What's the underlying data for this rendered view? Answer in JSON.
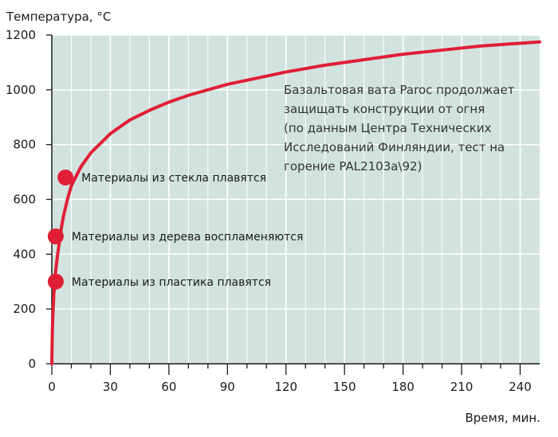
{
  "chart_data": {
    "type": "line",
    "ylabel": "Температура, °C",
    "xlabel": "Время, мин.",
    "xlim": [
      0,
      250
    ],
    "ylim": [
      0,
      1200
    ],
    "x_tick_labels": [
      "0",
      "30",
      "60",
      "90",
      "120",
      "150",
      "180",
      "210",
      "240"
    ],
    "x_tick_values": [
      0,
      30,
      60,
      90,
      120,
      150,
      180,
      210,
      240
    ],
    "y_ticks": [
      0,
      200,
      400,
      600,
      800,
      1000,
      1200
    ],
    "grid": true,
    "background_color": "#d2e3df",
    "grid_color": "#ffffff",
    "line_color": "#e01f36",
    "series": [
      {
        "x": [
          0,
          0.3,
          0.5,
          1,
          1.5,
          2,
          3,
          4,
          5,
          6,
          8,
          10,
          15,
          20,
          30,
          40,
          50,
          60,
          70,
          80,
          90,
          100,
          120,
          140,
          160,
          180,
          200,
          220,
          240,
          250
        ],
        "values": [
          0,
          130,
          170,
          250,
          300,
          340,
          400,
          450,
          500,
          540,
          600,
          650,
          720,
          770,
          840,
          890,
          925,
          955,
          980,
          1000,
          1020,
          1035,
          1065,
          1090,
          1110,
          1130,
          1145,
          1160,
          1170,
          1175
        ]
      }
    ],
    "annotations": [
      {
        "x": 2,
        "y": 300,
        "text": "Материалы из пластика плавятся"
      },
      {
        "x": 2,
        "y": 465,
        "text": "Материалы из дерева воспламеняются"
      },
      {
        "x": 7,
        "y": 680,
        "text": "Материалы из стекла плавятся"
      }
    ],
    "note_lines": [
      "Базальтовая вата Paroc продолжает",
      "защищать конструкции от огня",
      "(по данным Центра Технических",
      "Исследований Финляндии, тест на",
      "горение PAL2103a\\92)"
    ]
  }
}
